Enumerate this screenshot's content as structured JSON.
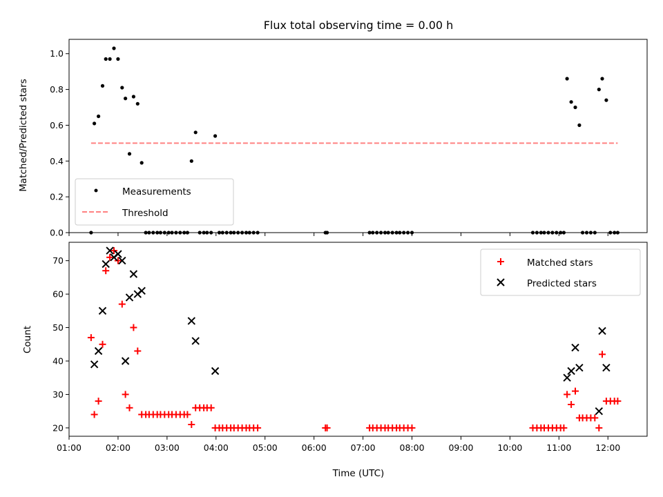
{
  "chart_data": [
    {
      "type": "scatter",
      "title": "Flux total observing time = 0.00 h",
      "xlabel": "",
      "ylabel": "Matched/Predicted stars",
      "xlim": [
        "01:00",
        "12:48"
      ],
      "ylim": [
        0,
        1.08
      ],
      "yticks": [
        "0.0",
        "0.2",
        "0.4",
        "0.6",
        "0.8",
        "1.0"
      ],
      "grid": false,
      "legend_position": "lower-left",
      "series": [
        {
          "name": "Measurements",
          "style": "dot",
          "color": "#000000",
          "points": [
            [
              "01:27",
              0.0
            ],
            [
              "01:31",
              0.61
            ],
            [
              "01:36",
              0.65
            ],
            [
              "01:41",
              0.82
            ],
            [
              "01:45",
              0.97
            ],
            [
              "01:50",
              0.97
            ],
            [
              "01:55",
              1.03
            ],
            [
              "02:00",
              0.97
            ],
            [
              "02:05",
              0.81
            ],
            [
              "02:09",
              0.75
            ],
            [
              "02:14",
              0.44
            ],
            [
              "02:19",
              0.76
            ],
            [
              "02:24",
              0.72
            ],
            [
              "02:29",
              0.39
            ],
            [
              "02:34",
              0.0
            ],
            [
              "02:38",
              0.0
            ],
            [
              "02:43",
              0.0
            ],
            [
              "02:48",
              0.0
            ],
            [
              "02:52",
              0.0
            ],
            [
              "02:57",
              0.0
            ],
            [
              "03:02",
              0.0
            ],
            [
              "03:06",
              0.0
            ],
            [
              "03:11",
              0.0
            ],
            [
              "03:16",
              0.0
            ],
            [
              "03:21",
              0.0
            ],
            [
              "03:25",
              0.0
            ],
            [
              "03:30",
              0.4
            ],
            [
              "03:35",
              0.56
            ],
            [
              "03:40",
              0.0
            ],
            [
              "03:45",
              0.0
            ],
            [
              "03:49",
              0.0
            ],
            [
              "03:54",
              0.0
            ],
            [
              "03:59",
              0.54
            ],
            [
              "04:04",
              0.0
            ],
            [
              "04:08",
              0.0
            ],
            [
              "04:13",
              0.0
            ],
            [
              "04:18",
              0.0
            ],
            [
              "04:22",
              0.0
            ],
            [
              "04:27",
              0.0
            ],
            [
              "04:32",
              0.0
            ],
            [
              "04:37",
              0.0
            ],
            [
              "04:41",
              0.0
            ],
            [
              "04:46",
              0.0
            ],
            [
              "04:51",
              0.0
            ],
            [
              "06:14",
              0.0
            ],
            [
              "06:16",
              0.0
            ],
            [
              "07:08",
              0.0
            ],
            [
              "07:12",
              0.0
            ],
            [
              "07:17",
              0.0
            ],
            [
              "07:22",
              0.0
            ],
            [
              "07:27",
              0.0
            ],
            [
              "07:31",
              0.0
            ],
            [
              "07:36",
              0.0
            ],
            [
              "07:41",
              0.0
            ],
            [
              "07:45",
              0.0
            ],
            [
              "07:50",
              0.0
            ],
            [
              "07:55",
              0.0
            ],
            [
              "08:00",
              0.0
            ],
            [
              "10:28",
              0.0
            ],
            [
              "10:33",
              0.0
            ],
            [
              "10:38",
              0.0
            ],
            [
              "10:42",
              0.0
            ],
            [
              "10:47",
              0.0
            ],
            [
              "10:52",
              0.0
            ],
            [
              "10:57",
              0.0
            ],
            [
              "11:02",
              0.0
            ],
            [
              "11:06",
              0.0
            ],
            [
              "11:10",
              0.86
            ],
            [
              "11:15",
              0.73
            ],
            [
              "11:20",
              0.7
            ],
            [
              "11:25",
              0.6
            ],
            [
              "11:29",
              0.0
            ],
            [
              "11:34",
              0.0
            ],
            [
              "11:39",
              0.0
            ],
            [
              "11:44",
              0.0
            ],
            [
              "11:49",
              0.8
            ],
            [
              "11:53",
              0.86
            ],
            [
              "11:58",
              0.74
            ],
            [
              "12:03",
              0.0
            ],
            [
              "12:08",
              0.0
            ],
            [
              "12:12",
              0.0
            ]
          ]
        },
        {
          "name": "Threshold",
          "style": "dashed-line",
          "color": "#ff8080",
          "points": [
            [
              "01:27",
              0.5
            ],
            [
              "12:12",
              0.5
            ]
          ]
        }
      ]
    },
    {
      "type": "scatter",
      "title": "",
      "xlabel": "Time (UTC)",
      "ylabel": "Count",
      "xlim": [
        "01:00",
        "12:48"
      ],
      "ylim": [
        17.5,
        75.5
      ],
      "xticks": [
        "01:00",
        "02:00",
        "03:00",
        "04:00",
        "05:00",
        "06:00",
        "07:00",
        "08:00",
        "09:00",
        "10:00",
        "11:00",
        "12:00"
      ],
      "yticks": [
        "20",
        "30",
        "40",
        "50",
        "60",
        "70"
      ],
      "grid": false,
      "legend_position": "top-right",
      "series": [
        {
          "name": "Matched stars",
          "style": "plus",
          "color": "#ff0000",
          "points": [
            [
              "01:27",
              47
            ],
            [
              "01:31",
              24
            ],
            [
              "01:36",
              28
            ],
            [
              "01:41",
              45
            ],
            [
              "01:45",
              67
            ],
            [
              "01:50",
              71
            ],
            [
              "01:55",
              73
            ],
            [
              "02:00",
              70
            ],
            [
              "02:05",
              57
            ],
            [
              "02:09",
              30
            ],
            [
              "02:14",
              26
            ],
            [
              "02:19",
              50
            ],
            [
              "02:24",
              43
            ],
            [
              "02:29",
              24
            ],
            [
              "02:34",
              24
            ],
            [
              "02:38",
              24
            ],
            [
              "02:43",
              24
            ],
            [
              "02:48",
              24
            ],
            [
              "02:52",
              24
            ],
            [
              "02:57",
              24
            ],
            [
              "03:02",
              24
            ],
            [
              "03:06",
              24
            ],
            [
              "03:11",
              24
            ],
            [
              "03:16",
              24
            ],
            [
              "03:21",
              24
            ],
            [
              "03:25",
              24
            ],
            [
              "03:30",
              21
            ],
            [
              "03:35",
              26
            ],
            [
              "03:40",
              26
            ],
            [
              "03:45",
              26
            ],
            [
              "03:49",
              26
            ],
            [
              "03:54",
              26
            ],
            [
              "03:59",
              20
            ],
            [
              "04:04",
              20
            ],
            [
              "04:08",
              20
            ],
            [
              "04:13",
              20
            ],
            [
              "04:18",
              20
            ],
            [
              "04:22",
              20
            ],
            [
              "04:27",
              20
            ],
            [
              "04:32",
              20
            ],
            [
              "04:37",
              20
            ],
            [
              "04:41",
              20
            ],
            [
              "04:46",
              20
            ],
            [
              "04:51",
              20
            ],
            [
              "06:14",
              20
            ],
            [
              "06:16",
              20
            ],
            [
              "07:08",
              20
            ],
            [
              "07:12",
              20
            ],
            [
              "07:17",
              20
            ],
            [
              "07:22",
              20
            ],
            [
              "07:27",
              20
            ],
            [
              "07:31",
              20
            ],
            [
              "07:36",
              20
            ],
            [
              "07:41",
              20
            ],
            [
              "07:45",
              20
            ],
            [
              "07:50",
              20
            ],
            [
              "07:55",
              20
            ],
            [
              "08:00",
              20
            ],
            [
              "10:28",
              20
            ],
            [
              "10:33",
              20
            ],
            [
              "10:38",
              20
            ],
            [
              "10:42",
              20
            ],
            [
              "10:47",
              20
            ],
            [
              "10:52",
              20
            ],
            [
              "10:57",
              20
            ],
            [
              "11:02",
              20
            ],
            [
              "11:06",
              20
            ],
            [
              "11:10",
              30
            ],
            [
              "11:15",
              27
            ],
            [
              "11:20",
              31
            ],
            [
              "11:25",
              23
            ],
            [
              "11:29",
              23
            ],
            [
              "11:34",
              23
            ],
            [
              "11:39",
              23
            ],
            [
              "11:44",
              23
            ],
            [
              "11:49",
              20
            ],
            [
              "11:53",
              42
            ],
            [
              "11:58",
              28
            ],
            [
              "12:03",
              28
            ],
            [
              "12:08",
              28
            ],
            [
              "12:12",
              28
            ]
          ]
        },
        {
          "name": "Predicted stars",
          "style": "x",
          "color": "#000000",
          "points": [
            [
              "01:31",
              39
            ],
            [
              "01:36",
              43
            ],
            [
              "01:41",
              55
            ],
            [
              "01:45",
              69
            ],
            [
              "01:50",
              73
            ],
            [
              "01:55",
              71
            ],
            [
              "02:00",
              72
            ],
            [
              "02:05",
              70
            ],
            [
              "02:09",
              40
            ],
            [
              "02:14",
              59
            ],
            [
              "02:19",
              66
            ],
            [
              "02:24",
              60
            ],
            [
              "02:29",
              61
            ],
            [
              "03:30",
              52
            ],
            [
              "03:35",
              46
            ],
            [
              "03:59",
              37
            ],
            [
              "11:10",
              35
            ],
            [
              "11:15",
              37
            ],
            [
              "11:20",
              44
            ],
            [
              "11:25",
              38
            ],
            [
              "11:49",
              25
            ],
            [
              "11:53",
              49
            ],
            [
              "11:58",
              38
            ]
          ]
        }
      ]
    }
  ]
}
